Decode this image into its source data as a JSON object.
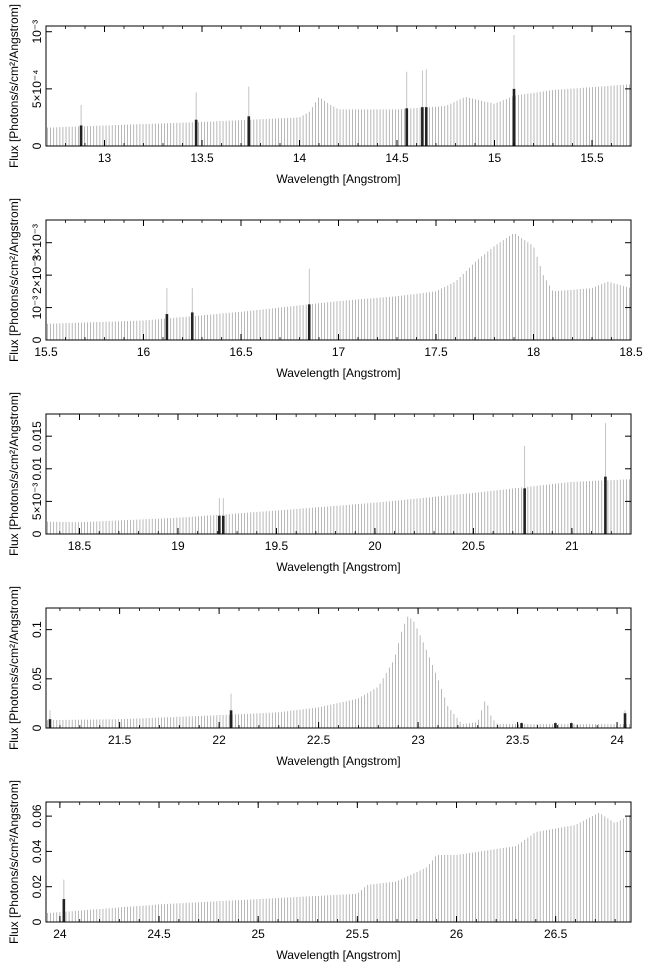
{
  "chart_data": [
    {
      "type": "bar",
      "xlabel": "Wavelength [Angstrom]",
      "ylabel": "Flux [Photons/s/cm²/Angstrom]",
      "xlim": [
        12.7,
        15.7
      ],
      "ylim": [
        0,
        0.00105
      ],
      "xticks": [
        13,
        13.5,
        14,
        14.5,
        15,
        15.5
      ],
      "xtick_labels": [
        "13",
        "13.5",
        "14",
        "14.5",
        "15",
        "15.5"
      ],
      "yticks": [
        0,
        0.0005,
        0.001
      ],
      "ytick_labels": [
        "0",
        "5×10⁻⁴",
        "10⁻³"
      ],
      "continuum": [
        [
          12.7,
          0.00016
        ],
        [
          13.0,
          0.00018
        ],
        [
          13.5,
          0.00021
        ],
        [
          14.0,
          0.00025
        ],
        [
          14.05,
          0.0003
        ],
        [
          14.1,
          0.00043
        ],
        [
          14.15,
          0.00037
        ],
        [
          14.2,
          0.00032
        ],
        [
          14.5,
          0.00032
        ],
        [
          14.75,
          0.00035
        ],
        [
          14.85,
          0.00043
        ],
        [
          15.0,
          0.00037
        ],
        [
          15.1,
          0.00044
        ],
        [
          15.3,
          0.00049
        ],
        [
          15.7,
          0.00054
        ]
      ],
      "lines": [
        {
          "x": 12.88,
          "value": 0.00018,
          "upper": 0.00036
        },
        {
          "x": 13.47,
          "value": 0.00023,
          "upper": 0.00047
        },
        {
          "x": 13.74,
          "value": 0.00026,
          "upper": 0.00052
        },
        {
          "x": 14.55,
          "value": 0.00033,
          "upper": 0.00065
        },
        {
          "x": 14.63,
          "value": 0.00034,
          "upper": 0.00066
        },
        {
          "x": 14.65,
          "value": 0.00034,
          "upper": 0.00067
        },
        {
          "x": 15.1,
          "value": 0.0005,
          "upper": 0.00097
        }
      ]
    },
    {
      "type": "bar",
      "xlabel": "Wavelength [Angstrom]",
      "ylabel": "Flux [Photons/s/cm²/Angstrom]",
      "xlim": [
        15.5,
        18.5
      ],
      "ylim": [
        0,
        0.0037
      ],
      "xticks": [
        15.5,
        16,
        16.5,
        17,
        17.5,
        18,
        18.5
      ],
      "xtick_labels": [
        "15.5",
        "16",
        "16.5",
        "17",
        "17.5",
        "18",
        "18.5"
      ],
      "yticks": [
        0,
        0.001,
        0.002,
        0.003
      ],
      "ytick_labels": [
        "0",
        "10⁻³",
        "2×10⁻³",
        "3×10⁻³"
      ],
      "continuum": [
        [
          15.5,
          0.0005
        ],
        [
          16.0,
          0.0006
        ],
        [
          16.5,
          0.00087
        ],
        [
          17.0,
          0.0012
        ],
        [
          17.3,
          0.00135
        ],
        [
          17.5,
          0.0015
        ],
        [
          17.6,
          0.0018
        ],
        [
          17.7,
          0.0024
        ],
        [
          17.8,
          0.0029
        ],
        [
          17.9,
          0.0033
        ],
        [
          18.0,
          0.0029
        ],
        [
          18.05,
          0.002
        ],
        [
          18.1,
          0.0015
        ],
        [
          18.3,
          0.0016
        ],
        [
          18.38,
          0.0018
        ],
        [
          18.5,
          0.0016
        ]
      ],
      "lines": [
        {
          "x": 16.12,
          "value": 0.0008,
          "upper": 0.0016
        },
        {
          "x": 16.25,
          "value": 0.00085,
          "upper": 0.0016
        },
        {
          "x": 16.85,
          "value": 0.0011,
          "upper": 0.0022
        }
      ]
    },
    {
      "type": "bar",
      "xlabel": "Wavelength [Angstrom]",
      "ylabel": "Flux [Photons/s/cm²/Angstrom]",
      "xlim": [
        18.33,
        21.3
      ],
      "ylim": [
        0,
        0.0184
      ],
      "xticks": [
        18.5,
        19,
        19.5,
        20,
        20.5,
        21
      ],
      "xtick_labels": [
        "18.5",
        "19",
        "19.5",
        "20",
        "20.5",
        "21"
      ],
      "yticks": [
        0,
        0.005,
        0.01,
        0.015
      ],
      "ytick_labels": [
        "0",
        "5×10⁻³",
        "0.01",
        "0.015"
      ],
      "continuum": [
        [
          18.33,
          0.0019
        ],
        [
          18.5,
          0.0018
        ],
        [
          19.0,
          0.0025
        ],
        [
          19.5,
          0.0036
        ],
        [
          20.0,
          0.0048
        ],
        [
          20.5,
          0.0063
        ],
        [
          21.0,
          0.008
        ],
        [
          21.3,
          0.0084
        ]
      ],
      "lines": [
        {
          "x": 19.21,
          "value": 0.0028,
          "upper": 0.0055
        },
        {
          "x": 19.23,
          "value": 0.0028,
          "upper": 0.0055
        },
        {
          "x": 20.76,
          "value": 0.007,
          "upper": 0.0135
        },
        {
          "x": 21.17,
          "value": 0.0088,
          "upper": 0.017
        }
      ]
    },
    {
      "type": "bar",
      "xlabel": "Wavelength [Angstrom]",
      "ylabel": "Flux [Photons/s/cm²/Angstrom]",
      "xlim": [
        21.13,
        24.07
      ],
      "ylim": [
        0,
        0.122
      ],
      "xticks": [
        21.5,
        22,
        22.5,
        23,
        23.5,
        24
      ],
      "xtick_labels": [
        "21.5",
        "22",
        "22.5",
        "23",
        "23.5",
        "24"
      ],
      "yticks": [
        0,
        0.05,
        0.1
      ],
      "ytick_labels": [
        "0",
        "0.05",
        "0.1"
      ],
      "continuum": [
        [
          21.13,
          0.008
        ],
        [
          21.5,
          0.009
        ],
        [
          22.0,
          0.013
        ],
        [
          22.3,
          0.016
        ],
        [
          22.5,
          0.021
        ],
        [
          22.7,
          0.03
        ],
        [
          22.8,
          0.042
        ],
        [
          22.88,
          0.07
        ],
        [
          22.92,
          0.1
        ],
        [
          22.95,
          0.114
        ],
        [
          22.98,
          0.108
        ],
        [
          23.03,
          0.085
        ],
        [
          23.1,
          0.05
        ],
        [
          23.15,
          0.022
        ],
        [
          23.22,
          0.004
        ],
        [
          23.3,
          0.006
        ],
        [
          23.34,
          0.03
        ],
        [
          23.37,
          0.01
        ],
        [
          23.4,
          0.004
        ],
        [
          24.07,
          0.004
        ]
      ],
      "lines": [
        {
          "x": 21.15,
          "value": 0.009,
          "upper": 0.018
        },
        {
          "x": 22.06,
          "value": 0.018,
          "upper": 0.035
        },
        {
          "x": 23.52,
          "value": 0.005,
          "upper": 0.006
        },
        {
          "x": 23.69,
          "value": 0.005,
          "upper": 0.006
        },
        {
          "x": 23.77,
          "value": 0.005,
          "upper": 0.006
        },
        {
          "x": 24.04,
          "value": 0.015,
          "upper": 0.018
        }
      ]
    },
    {
      "type": "bar",
      "xlabel": "Wavelength [Angstrom]",
      "ylabel": "Flux [Photons/s/cm²/Angstrom]",
      "xlim": [
        23.93,
        26.88
      ],
      "ylim": [
        0,
        0.068
      ],
      "xticks": [
        24,
        24.5,
        25,
        25.5,
        26,
        26.5
      ],
      "xtick_labels": [
        "24",
        "24.5",
        "25",
        "25.5",
        "26",
        "26.5"
      ],
      "yticks": [
        0,
        0.02,
        0.04,
        0.06
      ],
      "ytick_labels": [
        "0",
        "0.02",
        "0.04",
        "0.06"
      ],
      "continuum": [
        [
          23.93,
          0.005
        ],
        [
          24.5,
          0.01
        ],
        [
          25.0,
          0.013
        ],
        [
          25.5,
          0.016
        ],
        [
          25.55,
          0.021
        ],
        [
          25.7,
          0.023
        ],
        [
          25.85,
          0.031
        ],
        [
          25.9,
          0.038
        ],
        [
          26.0,
          0.038
        ],
        [
          26.3,
          0.043
        ],
        [
          26.4,
          0.051
        ],
        [
          26.6,
          0.055
        ],
        [
          26.72,
          0.062
        ],
        [
          26.8,
          0.056
        ],
        [
          26.88,
          0.061
        ]
      ],
      "lines": [
        {
          "x": 24.02,
          "value": 0.013,
          "upper": 0.024
        }
      ]
    }
  ]
}
